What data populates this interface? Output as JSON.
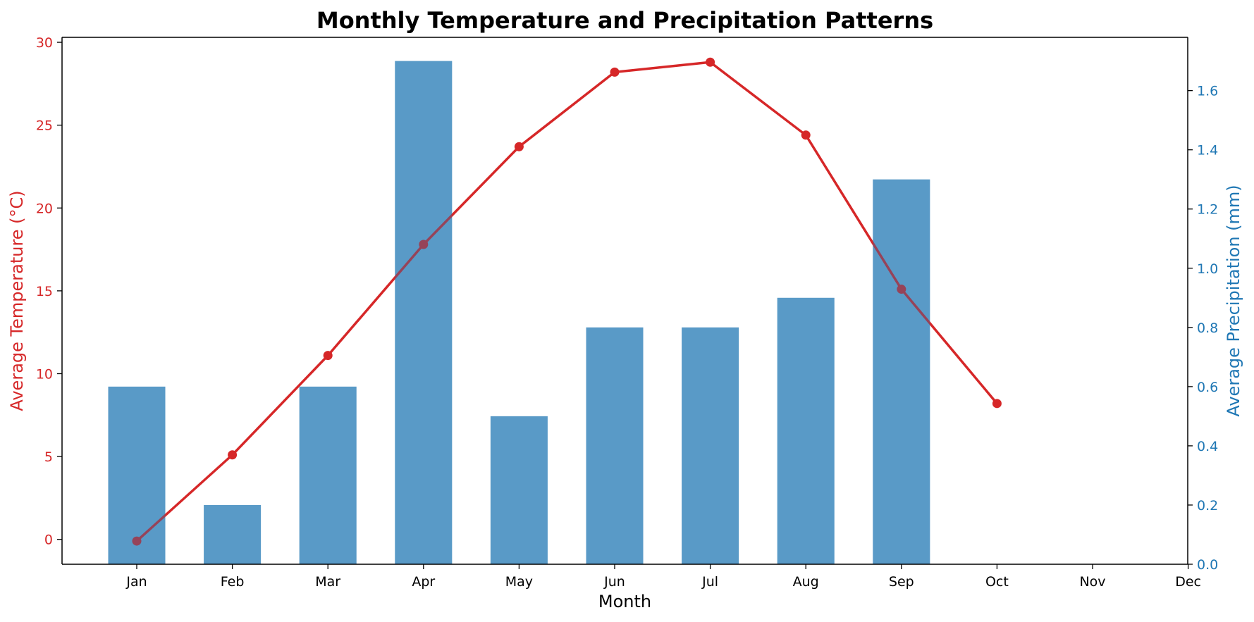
{
  "chart_data": {
    "type": "bar",
    "title": "Monthly Temperature and Precipitation Patterns",
    "xlabel": "Month",
    "categories": [
      "Jan",
      "Feb",
      "Mar",
      "Apr",
      "May",
      "Jun",
      "Jul",
      "Aug",
      "Sep",
      "Oct",
      "Nov",
      "Dec"
    ],
    "left_axis": {
      "label": "Average Temperature (°C)",
      "ticks": [
        0,
        5,
        10,
        15,
        20,
        25,
        30
      ],
      "ylim": [
        -1.5,
        30.3
      ],
      "color": "#d62728"
    },
    "right_axis": {
      "label": "Average Precipitation (mm)",
      "ticks": [
        0.0,
        0.2,
        0.4,
        0.6,
        0.8,
        1.0,
        1.2,
        1.4,
        1.6
      ],
      "ylim": [
        0.0,
        1.78
      ],
      "color": "#1f77b4"
    },
    "series": [
      {
        "kind": "bar",
        "axis": "right",
        "color": "#1f77b4",
        "opacity": 0.6,
        "values": [
          0.6,
          0.2,
          0.6,
          1.7,
          0.5,
          0.8,
          0.8,
          0.9,
          1.3,
          null,
          null,
          null
        ]
      },
      {
        "kind": "line",
        "axis": "left",
        "color": "#d62728",
        "values": [
          -0.1,
          5.1,
          11.1,
          17.8,
          23.7,
          28.2,
          28.8,
          24.4,
          15.1,
          8.2,
          null,
          null
        ]
      }
    ],
    "grid": false,
    "legend": "none"
  }
}
